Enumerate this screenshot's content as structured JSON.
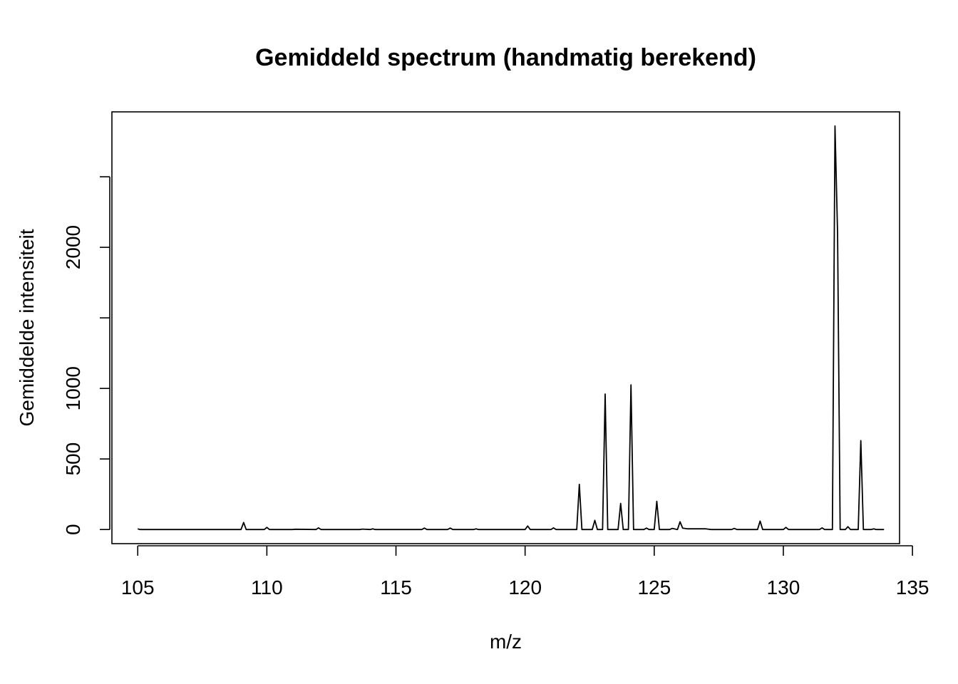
{
  "chart_data": {
    "type": "line",
    "title": "Gemiddeld spectrum (handmatig berekend)",
    "xlabel": "m/z",
    "ylabel": "Gemiddelde intensiteit",
    "xlim": [
      104,
      134.5
    ],
    "ylim": [
      -100,
      2960
    ],
    "x_ticks": [
      105,
      110,
      115,
      120,
      125,
      130,
      135
    ],
    "x_tick_labels": [
      "105",
      "110",
      "115",
      "120",
      "125",
      "130",
      "135"
    ],
    "y_ticks": [
      0,
      500,
      1000,
      1500,
      2000,
      2500
    ],
    "y_tick_labels": [
      "0",
      "500",
      "1000",
      "",
      "2000",
      ""
    ],
    "grid": false,
    "legend": "none",
    "series": [
      {
        "color": "#000000",
        "x": [
          105.0,
          105.1,
          105.2,
          109.0,
          109.1,
          109.2,
          109.9,
          110.0,
          110.1,
          111.0,
          111.1,
          111.9,
          112.0,
          112.1,
          113.6,
          113.7,
          114.0,
          114.1,
          114.2,
          116.0,
          116.1,
          116.2,
          117.0,
          117.1,
          117.2,
          118.0,
          118.1,
          118.2,
          120.0,
          120.1,
          120.2,
          121.0,
          121.1,
          121.2,
          122.0,
          122.1,
          122.2,
          122.6,
          122.7,
          122.8,
          123.0,
          123.1,
          123.2,
          123.6,
          123.7,
          123.8,
          124.0,
          124.1,
          124.2,
          124.6,
          124.7,
          124.8,
          125.0,
          125.1,
          125.2,
          125.6,
          125.7,
          125.9,
          126.0,
          126.1,
          126.3,
          127.0,
          127.2,
          128.0,
          128.1,
          128.2,
          129.0,
          129.1,
          129.2,
          130.0,
          130.1,
          130.2,
          131.4,
          131.5,
          131.6,
          131.9,
          132.0,
          132.1,
          132.2,
          132.4,
          132.5,
          132.6,
          132.9,
          133.0,
          133.1,
          133.2,
          133.4,
          133.5,
          133.6,
          133.9
        ],
        "y": [
          5,
          0,
          0,
          0,
          50,
          0,
          0,
          15,
          0,
          0,
          2,
          0,
          12,
          0,
          0,
          3,
          0,
          5,
          0,
          0,
          10,
          0,
          0,
          10,
          0,
          0,
          5,
          0,
          0,
          25,
          0,
          0,
          12,
          0,
          0,
          320,
          0,
          0,
          65,
          0,
          0,
          960,
          0,
          0,
          185,
          0,
          0,
          1025,
          0,
          0,
          10,
          0,
          0,
          200,
          0,
          0,
          8,
          0,
          55,
          10,
          5,
          5,
          0,
          0,
          8,
          0,
          0,
          60,
          0,
          0,
          15,
          0,
          0,
          12,
          0,
          0,
          2860,
          2100,
          0,
          0,
          20,
          0,
          0,
          630,
          0,
          0,
          0,
          5,
          0,
          0
        ]
      }
    ]
  }
}
